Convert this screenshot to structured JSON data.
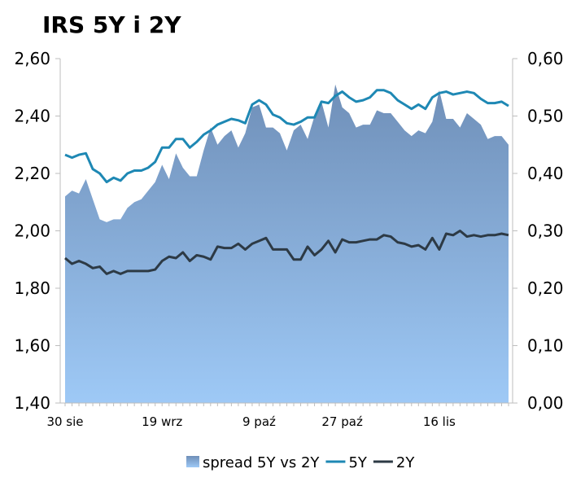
{
  "chart_data": {
    "type": "line",
    "title": "IRS 5Y i 2Y",
    "x_tick_labels": [
      "30 sie",
      "19 wrz",
      "9 paź",
      "27 paź",
      "16 lis"
    ],
    "x_tick_indices": [
      0,
      14,
      28,
      40,
      54
    ],
    "left_axis": {
      "ylim": [
        1.4,
        2.6
      ],
      "tick_values": [
        1.4,
        1.6,
        1.8,
        2.0,
        2.2,
        2.4,
        2.6
      ],
      "tick_labels": [
        "1,40",
        "1,60",
        "1,80",
        "2,00",
        "2,20",
        "2,40",
        "2,60"
      ]
    },
    "right_axis": {
      "ylim": [
        0.0,
        0.6
      ],
      "tick_values": [
        0.0,
        0.1,
        0.2,
        0.3,
        0.4,
        0.5,
        0.6
      ],
      "tick_labels": [
        "0,00",
        "0,10",
        "0,20",
        "0,30",
        "0,40",
        "0,50",
        "0,60"
      ]
    },
    "grid": false,
    "legend_position": "bottom",
    "series": [
      {
        "name": "spread 5Y vs 2Y",
        "kind": "area",
        "axis": "right",
        "color_top": "#6f8fb8",
        "color_bottom": "#9ec9f6",
        "values": [
          0.36,
          0.37,
          0.365,
          0.39,
          0.355,
          0.32,
          0.315,
          0.32,
          0.32,
          0.34,
          0.35,
          0.355,
          0.37,
          0.385,
          0.415,
          0.39,
          0.435,
          0.41,
          0.395,
          0.395,
          0.44,
          0.48,
          0.45,
          0.465,
          0.475,
          0.445,
          0.47,
          0.515,
          0.52,
          0.48,
          0.48,
          0.47,
          0.44,
          0.475,
          0.485,
          0.46,
          0.5,
          0.525,
          0.48,
          0.555,
          0.515,
          0.505,
          0.48,
          0.485,
          0.485,
          0.51,
          0.505,
          0.505,
          0.49,
          0.475,
          0.465,
          0.475,
          0.47,
          0.49,
          0.545,
          0.495,
          0.495,
          0.48,
          0.505,
          0.495,
          0.485,
          0.46,
          0.465,
          0.465,
          0.45
        ]
      },
      {
        "name": "5Y",
        "kind": "line",
        "axis": "left",
        "color": "#1e88b4",
        "values": [
          2.265,
          2.255,
          2.265,
          2.27,
          2.215,
          2.2,
          2.17,
          2.185,
          2.175,
          2.2,
          2.21,
          2.21,
          2.22,
          2.24,
          2.29,
          2.29,
          2.32,
          2.32,
          2.29,
          2.31,
          2.335,
          2.35,
          2.37,
          2.38,
          2.39,
          2.385,
          2.375,
          2.44,
          2.455,
          2.44,
          2.405,
          2.395,
          2.375,
          2.37,
          2.38,
          2.395,
          2.395,
          2.45,
          2.445,
          2.47,
          2.485,
          2.465,
          2.45,
          2.455,
          2.465,
          2.49,
          2.49,
          2.48,
          2.455,
          2.44,
          2.425,
          2.44,
          2.425,
          2.465,
          2.48,
          2.485,
          2.475,
          2.48,
          2.485,
          2.48,
          2.46,
          2.445,
          2.445,
          2.45,
          2.435
        ]
      },
      {
        "name": "2Y",
        "kind": "line",
        "axis": "left",
        "color": "#2d3a45",
        "values": [
          1.905,
          1.885,
          1.895,
          1.885,
          1.87,
          1.875,
          1.85,
          1.86,
          1.85,
          1.86,
          1.86,
          1.86,
          1.86,
          1.865,
          1.895,
          1.91,
          1.905,
          1.925,
          1.895,
          1.915,
          1.91,
          1.9,
          1.945,
          1.94,
          1.94,
          1.955,
          1.935,
          1.955,
          1.965,
          1.975,
          1.935,
          1.935,
          1.935,
          1.9,
          1.9,
          1.945,
          1.915,
          1.935,
          1.965,
          1.925,
          1.97,
          1.96,
          1.96,
          1.965,
          1.97,
          1.97,
          1.985,
          1.98,
          1.96,
          1.955,
          1.945,
          1.95,
          1.935,
          1.975,
          1.935,
          1.99,
          1.985,
          2.0,
          1.98,
          1.985,
          1.98,
          1.985,
          1.985,
          1.99,
          1.985
        ]
      }
    ]
  }
}
